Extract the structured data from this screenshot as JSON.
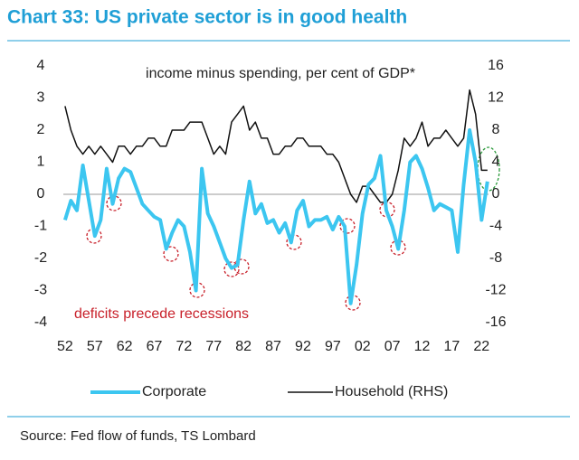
{
  "chart_data": {
    "type": "line",
    "title": "Chart 33: US private sector is in good health",
    "subtitle": "income minus spending, per cent of GDP*",
    "annotation": "deficits precede recessions",
    "source": "Source: Fed flow of funds, TS Lombard",
    "x": [
      1952,
      1953,
      1954,
      1955,
      1956,
      1957,
      1958,
      1959,
      1960,
      1961,
      1962,
      1963,
      1964,
      1965,
      1966,
      1967,
      1968,
      1969,
      1970,
      1971,
      1972,
      1973,
      1974,
      1975,
      1976,
      1977,
      1978,
      1979,
      1980,
      1981,
      1982,
      1983,
      1984,
      1985,
      1986,
      1987,
      1988,
      1989,
      1990,
      1991,
      1992,
      1993,
      1994,
      1995,
      1996,
      1997,
      1998,
      1999,
      2000,
      2001,
      2002,
      2003,
      2004,
      2005,
      2006,
      2007,
      2008,
      2009,
      2010,
      2011,
      2012,
      2013,
      2014,
      2015,
      2016,
      2017,
      2018,
      2019,
      2020,
      2021,
      2022,
      2023
    ],
    "series": [
      {
        "name": "Corporate",
        "color": "#3cc6f0",
        "axis": "y",
        "values": [
          -0.8,
          -0.2,
          -0.5,
          0.9,
          -0.2,
          -1.3,
          -0.8,
          0.8,
          -0.3,
          0.5,
          0.8,
          0.7,
          0.2,
          -0.3,
          -0.5,
          -0.7,
          -0.8,
          -1.7,
          -1.2,
          -0.8,
          -1.0,
          -1.8,
          -3.0,
          0.8,
          -0.6,
          -1.0,
          -1.5,
          -2.0,
          -2.3,
          -2.2,
          -0.8,
          0.4,
          -0.6,
          -0.3,
          -0.9,
          -0.8,
          -1.2,
          -0.9,
          -1.5,
          -0.5,
          -0.2,
          -1.0,
          -0.8,
          -0.8,
          -0.7,
          -1.1,
          -0.7,
          -1.0,
          -3.4,
          -2.2,
          -0.6,
          0.3,
          0.5,
          1.2,
          -0.5,
          -1.0,
          -1.7,
          -0.5,
          1.0,
          1.2,
          0.8,
          0.2,
          -0.5,
          -0.3,
          -0.4,
          -0.5,
          -1.8,
          0.3,
          2.0,
          1.0,
          -0.8,
          0.4
        ]
      },
      {
        "name": "Household (RHS)",
        "color": "#111111",
        "axis": "y2",
        "values": [
          11,
          8,
          6,
          5,
          6,
          5,
          6,
          5,
          4,
          6,
          6,
          5,
          6,
          6,
          7,
          7,
          6,
          6,
          8,
          8,
          8,
          9,
          9,
          9,
          7,
          5,
          6,
          5,
          9,
          10,
          11,
          8,
          9,
          7,
          7,
          5,
          5,
          6,
          6,
          7,
          7,
          6,
          6,
          6,
          5,
          5,
          4,
          2,
          0,
          -1,
          1,
          1,
          0,
          -1,
          -1,
          0,
          3,
          7,
          6,
          7,
          9,
          6,
          7,
          7,
          8,
          7,
          6,
          7,
          13,
          10,
          3,
          3
        ]
      }
    ],
    "xlim": [
      1950.5,
      2025
    ],
    "xticks": [
      {
        "value": 1952,
        "label": "52"
      },
      {
        "value": 1957,
        "label": "57"
      },
      {
        "value": 1962,
        "label": "62"
      },
      {
        "value": 1967,
        "label": "67"
      },
      {
        "value": 1972,
        "label": "72"
      },
      {
        "value": 1977,
        "label": "77"
      },
      {
        "value": 1982,
        "label": "82"
      },
      {
        "value": 1987,
        "label": "87"
      },
      {
        "value": 1992,
        "label": "92"
      },
      {
        "value": 1997,
        "label": "97"
      },
      {
        "value": 2002,
        "label": "02"
      },
      {
        "value": 2007,
        "label": "07"
      },
      {
        "value": 2012,
        "label": "12"
      },
      {
        "value": 2017,
        "label": "17"
      },
      {
        "value": 2022,
        "label": "22"
      }
    ],
    "ylim": [
      -4,
      4
    ],
    "yticks": [
      -4,
      -3,
      -2,
      -1,
      0,
      1,
      2,
      3,
      4
    ],
    "y2lim": [
      -16,
      16
    ],
    "y2ticks": [
      -16,
      -12,
      -8,
      -4,
      0,
      4,
      8,
      12,
      16
    ]
  }
}
